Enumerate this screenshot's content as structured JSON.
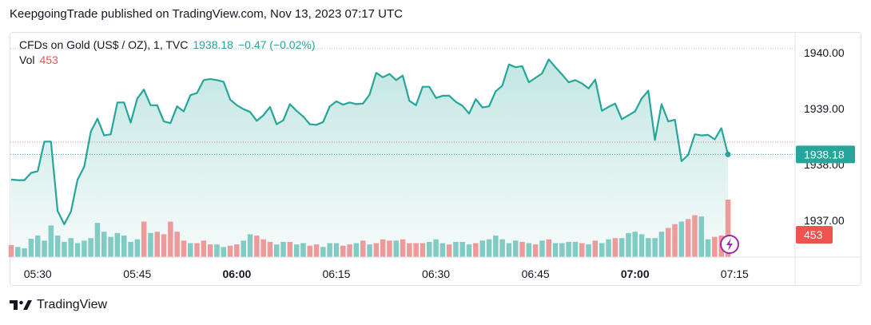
{
  "publisher": "KeepgoingTrade published on TradingView.com, Nov 13, 2023 07:17 UTC",
  "legend": {
    "symbol": "CFDs on Gold (US$ / OZ), 1, TVC",
    "price": "1938.18",
    "change": "−0.47 (−0.02%)",
    "volume_label": "Vol",
    "volume_value": "453"
  },
  "footer": {
    "brand": "TradingView"
  },
  "colors": {
    "line": "#26a69a",
    "up_volume": "#80cbc4",
    "down_volume": "#ef9a9a",
    "price_badge": "#26a69a",
    "volume_badge": "#ef5350",
    "flash_icon": "#9c27b0"
  },
  "icons": {
    "brand_logo": "tradingview-logo-icon",
    "flash": "lightning-icon"
  },
  "chart_data": {
    "type": "area",
    "title": "CFDs on Gold (US$ / OZ), 1, TVC",
    "price_axis": {
      "ticks": [
        "1940.00",
        "1939.00",
        "1938.00",
        "1937.00"
      ],
      "tick_values": [
        1940,
        1939,
        1938,
        1937
      ],
      "range": [
        1936.5,
        1940.5
      ],
      "last_price_label": "1938.18",
      "last_volume_label": "453"
    },
    "time_axis": {
      "ticks": [
        "05:30",
        "05:45",
        "06:00",
        "06:15",
        "06:30",
        "06:45",
        "07:00",
        "07:15"
      ],
      "bold_ticks": [
        "06:00",
        "07:00"
      ],
      "start_time": "05:26",
      "end_time": "07:17"
    },
    "price_series": [
      1937.73,
      1937.72,
      1937.72,
      1937.85,
      1937.88,
      1938.41,
      1938.41,
      1937.17,
      1936.93,
      1937.16,
      1937.73,
      1937.96,
      1938.59,
      1938.82,
      1938.52,
      1938.54,
      1939.11,
      1939.11,
      1938.75,
      1939.18,
      1939.34,
      1939.06,
      1939.06,
      1938.77,
      1938.74,
      1939.04,
      1938.95,
      1939.24,
      1939.28,
      1939.51,
      1939.53,
      1939.51,
      1939.48,
      1939.16,
      1939.06,
      1938.99,
      1938.94,
      1938.78,
      1938.88,
      1939.03,
      1938.72,
      1938.79,
      1939.08,
      1938.96,
      1938.86,
      1938.72,
      1938.71,
      1938.76,
      1939.04,
      1939.13,
      1939.07,
      1939.11,
      1939.08,
      1939.09,
      1939.25,
      1939.64,
      1939.56,
      1939.62,
      1939.51,
      1939.59,
      1939.14,
      1939.06,
      1939.39,
      1939.39,
      1939.19,
      1939.23,
      1939.23,
      1939.12,
      1939.05,
      1938.91,
      1939.17,
      1939.02,
      1939.04,
      1939.31,
      1939.41,
      1939.79,
      1939.74,
      1939.76,
      1939.47,
      1939.55,
      1939.63,
      1939.88,
      1939.74,
      1939.61,
      1939.47,
      1939.51,
      1939.45,
      1939.36,
      1939.52,
      1938.96,
      1939.03,
      1939.09,
      1938.81,
      1938.88,
      1938.95,
      1939.18,
      1939.32,
      1938.44,
      1939.08,
      1938.77,
      1938.8,
      1938.06,
      1938.17,
      1938.54,
      1938.52,
      1938.53,
      1938.45,
      1938.65,
      1938.18
    ],
    "volume_series": [
      95,
      80,
      70,
      145,
      170,
      130,
      250,
      170,
      120,
      150,
      110,
      130,
      150,
      270,
      200,
      160,
      190,
      170,
      120,
      140,
      280,
      190,
      200,
      180,
      280,
      200,
      130,
      110,
      110,
      130,
      100,
      100,
      80,
      90,
      100,
      130,
      180,
      170,
      140,
      120,
      100,
      120,
      120,
      100,
      110,
      90,
      100,
      80,
      110,
      110,
      90,
      100,
      110,
      130,
      100,
      110,
      140,
      130,
      130,
      140,
      110,
      110,
      110,
      120,
      140,
      110,
      100,
      120,
      120,
      100,
      110,
      130,
      140,
      170,
      140,
      110,
      130,
      120,
      110,
      100,
      130,
      140,
      110,
      110,
      120,
      120,
      110,
      100,
      130,
      110,
      140,
      150,
      150,
      190,
      200,
      180,
      150,
      150,
      200,
      230,
      260,
      280,
      300,
      330,
      320,
      140,
      160,
      170,
      453
    ],
    "volume_colors": [
      "down",
      "up",
      "up",
      "up",
      "up",
      "up",
      "up",
      "up",
      "up",
      "up",
      "up",
      "up",
      "up",
      "up",
      "up",
      "up",
      "up",
      "up",
      "up",
      "up",
      "down",
      "up",
      "down",
      "down",
      "down",
      "down",
      "down",
      "up",
      "down",
      "down",
      "down",
      "up",
      "up",
      "down",
      "down",
      "up",
      "up",
      "down",
      "down",
      "down",
      "up",
      "up",
      "down",
      "up",
      "up",
      "down",
      "down",
      "up",
      "up",
      "up",
      "down",
      "down",
      "up",
      "down",
      "up",
      "down",
      "down",
      "down",
      "up",
      "down",
      "down",
      "down",
      "down",
      "up",
      "up",
      "up",
      "down",
      "up",
      "up",
      "up",
      "down",
      "up",
      "up",
      "up",
      "up",
      "up",
      "up",
      "down",
      "up",
      "down",
      "up",
      "down",
      "up",
      "up",
      "up",
      "up",
      "down",
      "up",
      "down",
      "up",
      "up",
      "down",
      "up",
      "up",
      "up",
      "up",
      "up",
      "up",
      "up",
      "down",
      "down",
      "up",
      "down",
      "down",
      "up",
      "up",
      "down",
      "down",
      "down"
    ]
  }
}
